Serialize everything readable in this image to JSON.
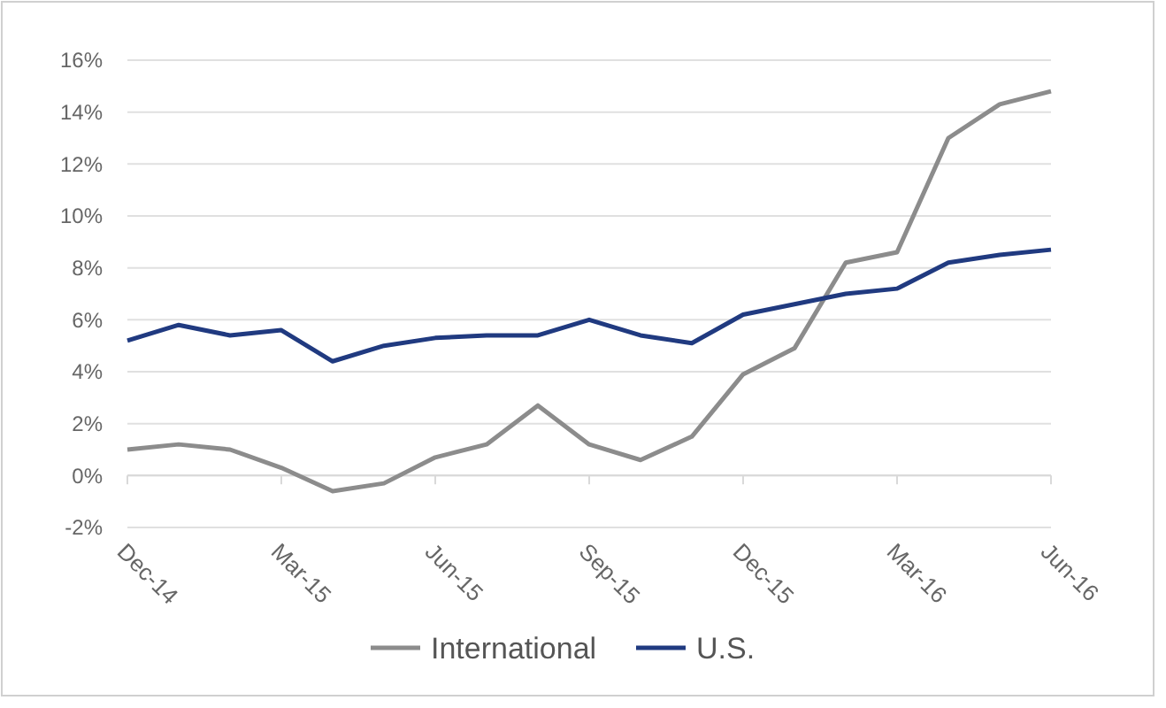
{
  "chart_data": {
    "type": "line",
    "categories": [
      "Dec-14",
      null,
      null,
      "Mar-15",
      null,
      null,
      "Jun-15",
      null,
      null,
      "Sep-15",
      null,
      null,
      "Dec-15",
      null,
      null,
      "Mar-16",
      null,
      null,
      "Jun-16"
    ],
    "series": [
      {
        "name": "International",
        "color": "#8c8c8c",
        "values": [
          1.0,
          1.2,
          1.0,
          0.3,
          -0.6,
          -0.3,
          0.7,
          1.2,
          2.7,
          1.2,
          0.6,
          1.5,
          3.9,
          4.9,
          8.2,
          8.6,
          13.0,
          14.3,
          14.8
        ]
      },
      {
        "name": "U.S.",
        "color": "#203a80",
        "values": [
          5.2,
          5.8,
          5.4,
          5.6,
          4.4,
          5.0,
          5.3,
          5.4,
          5.4,
          6.0,
          5.4,
          5.1,
          6.2,
          6.6,
          7.0,
          7.2,
          8.2,
          8.5,
          8.7
        ]
      }
    ],
    "ylim": [
      -2,
      16
    ],
    "yticks": [
      {
        "value": -2,
        "label": "-2%"
      },
      {
        "value": 0,
        "label": "0%"
      },
      {
        "value": 2,
        "label": "2%"
      },
      {
        "value": 4,
        "label": "4%"
      },
      {
        "value": 6,
        "label": "6%"
      },
      {
        "value": 8,
        "label": "8%"
      },
      {
        "value": 10,
        "label": "10%"
      },
      {
        "value": 12,
        "label": "12%"
      },
      {
        "value": 14,
        "label": "14%"
      },
      {
        "value": 16,
        "label": "16%"
      }
    ],
    "grid": "y",
    "legend": "bottom",
    "marker": "none",
    "line_style": "solid"
  }
}
